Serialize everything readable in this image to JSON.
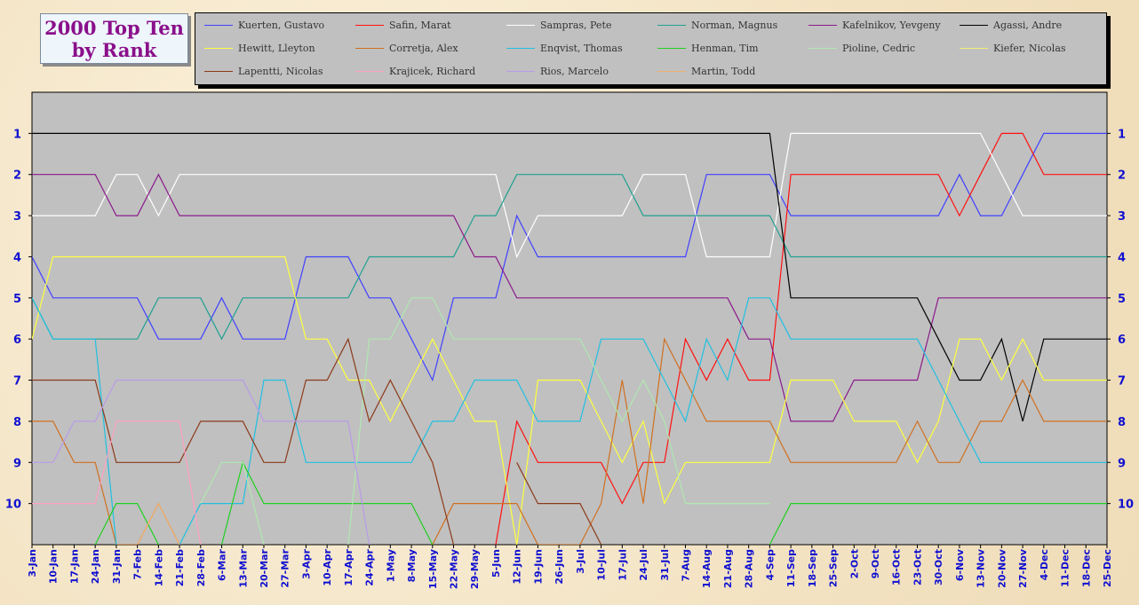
{
  "title_lines": [
    "2000 Top Ten",
    "by Rank"
  ],
  "chart_data": {
    "type": "line",
    "title": "2000 Top Ten by Rank",
    "x": [
      "3-Jan",
      "10-Jan",
      "17-Jan",
      "24-Jan",
      "31-Jan",
      "7-Feb",
      "14-Feb",
      "21-Feb",
      "28-Feb",
      "6-Mar",
      "13-Mar",
      "20-Mar",
      "27-Mar",
      "3-Apr",
      "10-Apr",
      "17-Apr",
      "24-Apr",
      "1-May",
      "8-May",
      "15-May",
      "22-May",
      "29-May",
      "5-Jun",
      "12-Jun",
      "19-Jun",
      "26-Jun",
      "3-Jul",
      "10-Jul",
      "17-Jul",
      "24-Jul",
      "31-Jul",
      "7-Aug",
      "14-Aug",
      "21-Aug",
      "28-Aug",
      "4-Sep",
      "11-Sep",
      "18-Sep",
      "25-Sep",
      "2-Oct",
      "9-Oct",
      "16-Oct",
      "23-Oct",
      "30-Oct",
      "6-Nov",
      "13-Nov",
      "20-Nov",
      "27-Nov",
      "4-Dec",
      "11-Dec",
      "18-Dec",
      "25-Dec"
    ],
    "y_ticks": [
      1,
      2,
      3,
      4,
      5,
      6,
      7,
      8,
      9,
      10
    ],
    "ylim": [
      0,
      11
    ],
    "y_reversed": true,
    "grid": false,
    "legend_position": "top",
    "background": "#c0c0c0",
    "series": [
      {
        "name": "Kuerten, Gustavo",
        "color": "#4040ff",
        "values": [
          4,
          5,
          5,
          5,
          5,
          5,
          6,
          6,
          6,
          5,
          6,
          6,
          6,
          4,
          4,
          4,
          5,
          5,
          6,
          7,
          5,
          5,
          5,
          3,
          4,
          4,
          4,
          4,
          4,
          4,
          4,
          4,
          2,
          2,
          2,
          2,
          3,
          3,
          3,
          3,
          3,
          3,
          3,
          3,
          2,
          3,
          3,
          2,
          1,
          1,
          1,
          1
        ]
      },
      {
        "name": "Safin, Marat",
        "color": "#ff1010",
        "values": [
          null,
          null,
          null,
          null,
          null,
          null,
          null,
          null,
          null,
          null,
          null,
          null,
          null,
          null,
          null,
          null,
          null,
          null,
          null,
          null,
          null,
          null,
          11,
          8,
          9,
          9,
          9,
          9,
          10,
          9,
          9,
          6,
          7,
          6,
          7,
          7,
          2,
          2,
          2,
          2,
          2,
          2,
          2,
          2,
          3,
          2,
          1,
          1,
          2,
          2,
          2,
          2
        ]
      },
      {
        "name": "Sampras, Pete",
        "color": "#ffffff",
        "values": [
          3,
          3,
          3,
          3,
          2,
          2,
          3,
          2,
          2,
          2,
          2,
          2,
          2,
          2,
          2,
          2,
          2,
          2,
          2,
          2,
          2,
          2,
          2,
          4,
          3,
          3,
          3,
          3,
          3,
          2,
          2,
          2,
          4,
          4,
          4,
          4,
          1,
          1,
          1,
          1,
          1,
          1,
          1,
          1,
          1,
          1,
          2,
          3,
          3,
          3,
          3,
          3
        ]
      },
      {
        "name": "Norman, Magnus",
        "color": "#20a090",
        "values": [
          5,
          6,
          6,
          6,
          6,
          6,
          5,
          5,
          5,
          6,
          5,
          5,
          5,
          5,
          5,
          5,
          4,
          4,
          4,
          4,
          4,
          3,
          3,
          2,
          2,
          2,
          2,
          2,
          2,
          3,
          3,
          3,
          3,
          3,
          3,
          3,
          4,
          4,
          4,
          4,
          4,
          4,
          4,
          4,
          4,
          4,
          4,
          4,
          4,
          4,
          4,
          4
        ]
      },
      {
        "name": "Kafelnikov, Yevgeny",
        "color": "#8a1a8a",
        "values": [
          2,
          2,
          2,
          2,
          3,
          3,
          2,
          3,
          3,
          3,
          3,
          3,
          3,
          3,
          3,
          3,
          3,
          3,
          3,
          3,
          3,
          4,
          4,
          5,
          5,
          5,
          5,
          5,
          5,
          5,
          5,
          5,
          5,
          5,
          6,
          6,
          8,
          8,
          8,
          7,
          7,
          7,
          7,
          5,
          5,
          5,
          5,
          5,
          5,
          5,
          5,
          5
        ]
      },
      {
        "name": "Agassi, Andre",
        "color": "#000000",
        "values": [
          1,
          1,
          1,
          1,
          1,
          1,
          1,
          1,
          1,
          1,
          1,
          1,
          1,
          1,
          1,
          1,
          1,
          1,
          1,
          1,
          1,
          1,
          1,
          1,
          1,
          1,
          1,
          1,
          1,
          1,
          1,
          1,
          1,
          1,
          1,
          1,
          5,
          5,
          5,
          5,
          5,
          5,
          5,
          6,
          7,
          7,
          6,
          8,
          6,
          6,
          6,
          6
        ]
      },
      {
        "name": "Hewitt, Lleyton",
        "color": "#ffff40",
        "values": [
          6,
          4,
          4,
          4,
          4,
          4,
          4,
          4,
          4,
          4,
          4,
          4,
          4,
          6,
          6,
          7,
          7,
          8,
          7,
          6,
          7,
          8,
          8,
          11,
          7,
          7,
          7,
          8,
          9,
          8,
          10,
          9,
          9,
          9,
          9,
          9,
          7,
          7,
          7,
          8,
          8,
          8,
          9,
          8,
          6,
          6,
          7,
          6,
          7,
          7,
          7,
          7
        ]
      },
      {
        "name": "Corretja, Alex",
        "color": "#d07020",
        "values": [
          8,
          8,
          9,
          9,
          11,
          11,
          10,
          11,
          null,
          null,
          null,
          null,
          null,
          null,
          null,
          null,
          null,
          null,
          null,
          11,
          10,
          10,
          10,
          10,
          11,
          11,
          11,
          10,
          7,
          10,
          6,
          7,
          8,
          8,
          8,
          8,
          9,
          9,
          9,
          9,
          9,
          9,
          8,
          9,
          9,
          8,
          8,
          7,
          8,
          8,
          8,
          8
        ]
      },
      {
        "name": "Enqvist, Thomas",
        "color": "#20c0e0",
        "values": [
          5,
          6,
          6,
          6,
          11,
          null,
          null,
          11,
          10,
          10,
          10,
          7,
          7,
          9,
          9,
          9,
          9,
          9,
          9,
          8,
          8,
          7,
          7,
          7,
          8,
          8,
          8,
          6,
          6,
          6,
          7,
          8,
          6,
          7,
          5,
          5,
          6,
          6,
          6,
          6,
          6,
          6,
          6,
          7,
          8,
          9,
          9,
          9,
          9,
          9,
          9,
          9
        ]
      },
      {
        "name": "Henman, Tim",
        "color": "#20d020",
        "values": [
          null,
          null,
          null,
          11,
          10,
          10,
          11,
          null,
          null,
          11,
          9,
          10,
          10,
          10,
          10,
          10,
          10,
          10,
          10,
          11,
          null,
          null,
          null,
          null,
          null,
          null,
          null,
          null,
          null,
          null,
          null,
          null,
          null,
          null,
          null,
          11,
          10,
          10,
          10,
          10,
          10,
          10,
          10,
          10,
          10,
          10,
          10,
          10,
          10,
          10,
          10,
          10
        ]
      },
      {
        "name": "Pioline, Cedric",
        "color": "#b0e8b0",
        "values": [
          null,
          null,
          null,
          null,
          null,
          null,
          null,
          null,
          10,
          9,
          9,
          11,
          null,
          null,
          null,
          11,
          6,
          6,
          5,
          5,
          6,
          6,
          6,
          6,
          6,
          6,
          6,
          7,
          8,
          7,
          8,
          10,
          10,
          10,
          10,
          10,
          null,
          null,
          null,
          null,
          null,
          null,
          null,
          null,
          null,
          null,
          null,
          null,
          null,
          null,
          null,
          null
        ]
      },
      {
        "name": "Kiefer, Nicolas",
        "color": "#f0f070",
        "values": [
          null,
          null,
          null,
          null,
          null,
          null,
          null,
          null,
          null,
          null,
          null,
          null,
          null,
          null,
          null,
          null,
          null,
          null,
          null,
          null,
          null,
          null,
          null,
          null,
          null,
          null,
          null,
          null,
          null,
          null,
          null,
          null,
          null,
          null,
          null,
          null,
          null,
          null,
          null,
          null,
          null,
          null,
          null,
          null,
          null,
          null,
          null,
          null,
          null,
          null,
          null,
          null
        ]
      },
      {
        "name": "Lapentti, Nicolas",
        "color": "#8b3a1a",
        "values": [
          7,
          7,
          7,
          7,
          9,
          9,
          9,
          9,
          8,
          8,
          8,
          9,
          9,
          7,
          7,
          6,
          8,
          7,
          8,
          9,
          11,
          null,
          null,
          9,
          10,
          10,
          10,
          11,
          null,
          null,
          null,
          null,
          null,
          null,
          null,
          null,
          null,
          null,
          null,
          null,
          null,
          null,
          null,
          null,
          null,
          null,
          null,
          null,
          null,
          null,
          null,
          null
        ]
      },
      {
        "name": "Krajicek, Richard",
        "color": "#ff9fc0",
        "values": [
          10,
          10,
          10,
          10,
          8,
          8,
          8,
          8,
          11,
          null,
          null,
          null,
          null,
          null,
          null,
          null,
          null,
          null,
          null,
          null,
          null,
          null,
          null,
          null,
          null,
          null,
          null,
          null,
          null,
          null,
          null,
          null,
          null,
          null,
          null,
          null,
          null,
          null,
          null,
          null,
          null,
          null,
          null,
          null,
          null,
          null,
          null,
          null,
          null,
          null,
          null,
          null
        ]
      },
      {
        "name": "Rios, Marcelo",
        "color": "#b89ae8",
        "values": [
          9,
          9,
          8,
          8,
          7,
          7,
          7,
          7,
          7,
          7,
          7,
          8,
          8,
          8,
          8,
          8,
          11,
          null,
          null,
          null,
          null,
          null,
          null,
          null,
          null,
          null,
          null,
          null,
          null,
          null,
          null,
          null,
          null,
          null,
          null,
          null,
          null,
          null,
          null,
          null,
          null,
          null,
          null,
          null,
          null,
          null,
          null,
          null,
          null,
          null,
          null,
          null
        ]
      },
      {
        "name": "Martin, Todd",
        "color": "#f0b070",
        "values": [
          null,
          null,
          null,
          null,
          null,
          11,
          10,
          11,
          null,
          null,
          null,
          null,
          null,
          null,
          null,
          null,
          null,
          null,
          null,
          null,
          null,
          null,
          null,
          null,
          null,
          null,
          null,
          null,
          null,
          null,
          null,
          null,
          null,
          null,
          null,
          null,
          null,
          null,
          null,
          null,
          null,
          null,
          null,
          null,
          null,
          null,
          null,
          null,
          null,
          null,
          null,
          null
        ]
      }
    ]
  }
}
